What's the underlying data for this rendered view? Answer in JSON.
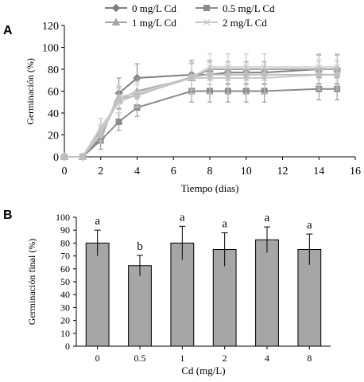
{
  "chart_data": [
    {
      "panel_label": "A",
      "type": "line",
      "xlabel": "Tiempo (días)",
      "ylabel": "Germinación (%)",
      "xlim": [
        0,
        16
      ],
      "ylim": [
        0,
        120
      ],
      "xticks": [
        "0",
        "2",
        "4",
        "6",
        "8",
        "10",
        "12",
        "14",
        "16"
      ],
      "yticks": [
        "0",
        "20",
        "40",
        "60",
        "80",
        "100",
        "120"
      ],
      "grid": false,
      "legend_position": "top",
      "series": [
        {
          "name": "0 mg/L Cd",
          "color": "#808080",
          "marker": "diamond",
          "x": [
            0,
            1,
            2,
            3,
            4,
            7,
            8,
            9,
            10,
            11,
            14,
            15
          ],
          "values": [
            0,
            0,
            17,
            58,
            72,
            75,
            75,
            77,
            77,
            77,
            80,
            80
          ],
          "errors": [
            0,
            0,
            5,
            14,
            13,
            13,
            13,
            10,
            10,
            10,
            13,
            13
          ]
        },
        {
          "name": "0.5 mg/L Cd",
          "color": "#8c8c8c",
          "marker": "square",
          "x": [
            0,
            1,
            2,
            3,
            4,
            7,
            8,
            9,
            10,
            11,
            14,
            15
          ],
          "values": [
            0,
            0,
            15,
            32,
            45,
            60,
            60,
            60,
            60,
            60,
            62,
            62
          ],
          "errors": [
            0,
            0,
            8,
            8,
            8,
            10,
            10,
            10,
            10,
            10,
            10,
            10
          ]
        },
        {
          "name": "1 mg/L Cd",
          "color": "#a6a6a6",
          "marker": "triangle",
          "x": [
            0,
            1,
            2,
            3,
            4,
            7,
            8,
            9,
            10,
            11,
            14,
            15
          ],
          "values": [
            0,
            0,
            25,
            52,
            60,
            72,
            80,
            80,
            80,
            80,
            80,
            80
          ],
          "errors": [
            0,
            0,
            10,
            12,
            12,
            14,
            14,
            14,
            14,
            14,
            14,
            14
          ]
        },
        {
          "name": "2 mg/L Cd",
          "color": "#c8c8c8",
          "marker": "cross",
          "x": [
            0,
            1,
            2,
            3,
            4,
            7,
            8,
            9,
            10,
            11,
            14,
            15
          ],
          "values": [
            0,
            0,
            27,
            50,
            57,
            72,
            72,
            72,
            72,
            72,
            75,
            75
          ],
          "errors": [
            0,
            0,
            8,
            12,
            12,
            14,
            14,
            14,
            14,
            14,
            14,
            14
          ]
        },
        {
          "color": "#d0d0d0",
          "marker": "star",
          "x": [
            0,
            1,
            2,
            3,
            4,
            7,
            8,
            9,
            10,
            11,
            14,
            15
          ],
          "values": [
            0,
            0,
            22,
            55,
            58,
            73,
            82,
            82,
            82,
            82,
            82,
            82
          ],
          "errors": [
            0,
            0,
            8,
            10,
            10,
            12,
            12,
            12,
            12,
            12,
            12,
            12
          ]
        },
        {
          "color": "#bfbfbf",
          "marker": "circle",
          "x": [
            0,
            1,
            2,
            3,
            4,
            7,
            8,
            9,
            10,
            11,
            14,
            15
          ],
          "values": [
            0,
            0,
            20,
            53,
            56,
            73,
            75,
            75,
            75,
            75,
            75,
            75
          ],
          "errors": [
            0,
            0,
            8,
            10,
            10,
            12,
            12,
            12,
            12,
            12,
            12,
            12
          ]
        }
      ]
    },
    {
      "panel_label": "B",
      "type": "bar",
      "xlabel": "Cd (mg/L)",
      "ylabel": "Germinación final (%)",
      "ylim": [
        0,
        100
      ],
      "yticks": [
        "0",
        "10",
        "20",
        "30",
        "40",
        "50",
        "60",
        "70",
        "80",
        "90",
        "100"
      ],
      "grid": false,
      "bar_color": "#a6a6a6",
      "categories": [
        "0",
        "0.5",
        "1",
        "2",
        "4",
        "8"
      ],
      "values": [
        80,
        62.5,
        80,
        75,
        82.5,
        75
      ],
      "errors": [
        10,
        8,
        13,
        13,
        10,
        12
      ],
      "significance_letters": [
        "a",
        "b",
        "a",
        "a",
        "a",
        "a"
      ]
    }
  ]
}
